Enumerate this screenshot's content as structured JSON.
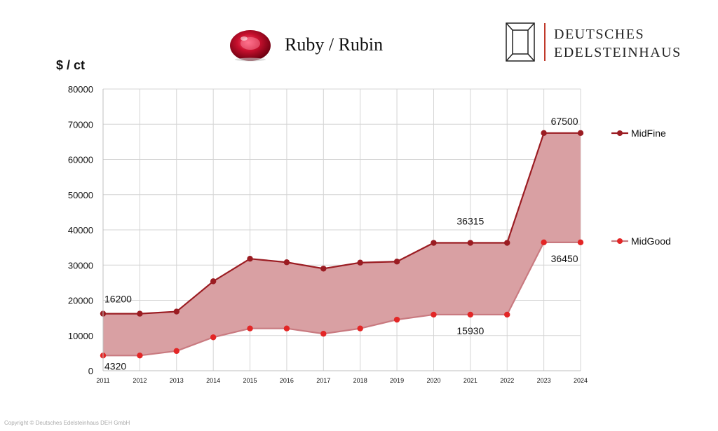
{
  "header": {
    "title": "Ruby / Rubin",
    "logo_line1": "DEUTSCHES",
    "logo_line2": "EDELSTEINHAUS",
    "logo_bar_color": "#c0392b"
  },
  "footer": {
    "copyright": "Copyright © Deutsches Edelsteinhaus DEH GmbH"
  },
  "chart_data": {
    "type": "area",
    "ylabel": "$ / ct",
    "xlabel": "",
    "categories": [
      "2011",
      "2012",
      "2013",
      "2014",
      "2015",
      "2016",
      "2017",
      "2018",
      "2019",
      "2020",
      "2021",
      "2022",
      "2023",
      "2024"
    ],
    "ylim": [
      0,
      80000
    ],
    "yticks": [
      0,
      10000,
      20000,
      30000,
      40000,
      50000,
      60000,
      70000,
      80000
    ],
    "grid": true,
    "legend_position": "right",
    "fill_between_series": true,
    "fill_color": "#d9a0a3",
    "series": [
      {
        "name": "MidFine",
        "color": "#9b1c22",
        "values": [
          16200,
          16200,
          16800,
          25400,
          31800,
          30800,
          29000,
          30700,
          31000,
          36315,
          36315,
          36315,
          67500,
          67500
        ]
      },
      {
        "name": "MidGood",
        "color": "#e32626",
        "line_color": "#c97a80",
        "values": [
          4320,
          4320,
          5600,
          9500,
          12000,
          12000,
          10500,
          12000,
          14500,
          15930,
          15930,
          15930,
          36450,
          36450
        ]
      }
    ],
    "annotations": [
      {
        "text": "16200",
        "series": 0,
        "index": 0,
        "anchor": "above"
      },
      {
        "text": "4320",
        "series": 1,
        "index": 0,
        "anchor": "below"
      },
      {
        "text": "36315",
        "series": 0,
        "index": 10,
        "anchor": "above"
      },
      {
        "text": "15930",
        "series": 1,
        "index": 10,
        "anchor": "below"
      },
      {
        "text": "67500",
        "series": 0,
        "index": 12,
        "anchor": "above"
      },
      {
        "text": "36450",
        "series": 1,
        "index": 12,
        "anchor": "below"
      }
    ]
  }
}
